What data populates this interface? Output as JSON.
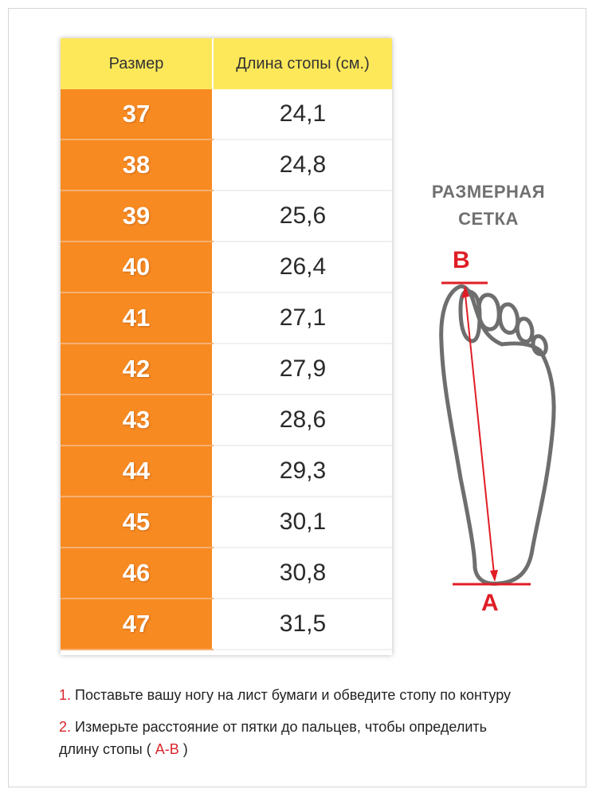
{
  "table": {
    "header": {
      "size": "Размер",
      "length": "Длина стопы (см.)"
    },
    "rows": [
      {
        "size": "37",
        "length": "24,1"
      },
      {
        "size": "38",
        "length": "24,8"
      },
      {
        "size": "39",
        "length": "25,6"
      },
      {
        "size": "40",
        "length": "26,4"
      },
      {
        "size": "41",
        "length": "27,1"
      },
      {
        "size": "42",
        "length": "27,9"
      },
      {
        "size": "43",
        "length": "28,6"
      },
      {
        "size": "44",
        "length": "29,3"
      },
      {
        "size": "45",
        "length": "30,1"
      },
      {
        "size": "46",
        "length": "30,8"
      },
      {
        "size": "47",
        "length": "31,5"
      }
    ]
  },
  "title": {
    "line1": "РАЗМЕРНАЯ",
    "line2": "СЕТКА"
  },
  "diagram": {
    "point_top": "B",
    "point_bottom": "A"
  },
  "instructions": {
    "step1": {
      "num": "1.",
      "text": "Поставьте вашу ногу на лист бумаги и обведите стопу по контуру"
    },
    "step2": {
      "num": "2.",
      "text_line1": "Измерьте расстояние от пятки до пальцев, чтобы определить",
      "text_line2_before": "длину стопы (",
      "highlight": "A-B",
      "text_line2_after": ")"
    }
  },
  "colors": {
    "header": "#fde85a",
    "size_cell": "#f88a22",
    "accent_red": "#e01d25"
  }
}
